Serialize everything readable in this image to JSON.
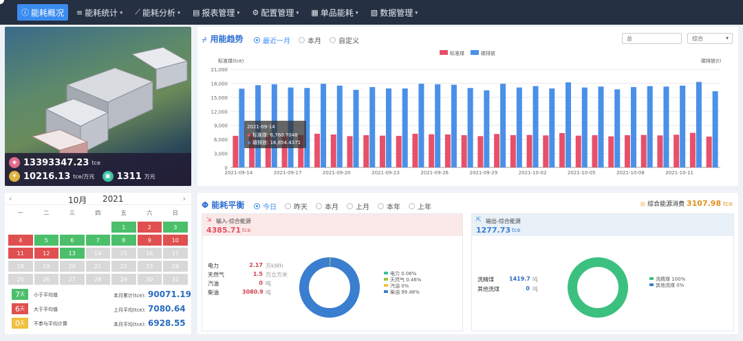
{
  "nav": {
    "items": [
      {
        "label": "能耗概况",
        "icon": "info-icon"
      },
      {
        "label": "能耗统计",
        "icon": "database-icon"
      },
      {
        "label": "能耗分析",
        "icon": "analytics-icon"
      },
      {
        "label": "报表管理",
        "icon": "report-icon"
      },
      {
        "label": "配置管理",
        "icon": "gear-icon"
      },
      {
        "label": "单品能耗",
        "icon": "document-icon"
      },
      {
        "label": "数据管理",
        "icon": "data-icon"
      }
    ]
  },
  "building": {
    "stats": [
      {
        "value": "13393347.23",
        "unit": "tce",
        "color": "#e06a8a"
      },
      {
        "value": "10216.13",
        "unit": "tce/万元",
        "color": "#e0b040"
      },
      {
        "value": "1311",
        "unit": "万元",
        "color": "#3cc0a0"
      }
    ]
  },
  "trend": {
    "title": "用能趋势",
    "ranges": [
      "最近一月",
      "本月",
      "自定义"
    ],
    "select1": "总",
    "select2": "综合",
    "tooltip": {
      "date": "2021-09-14",
      "line1": "标准煤: 6,760.7048",
      "line2": "碳排放: 16,854.4371"
    }
  },
  "chart_data": {
    "type": "bar",
    "ylabel": "标准煤(tce)",
    "y2label": "碳排放(t)",
    "ylim": [
      0,
      21000
    ],
    "yticks": [
      "0",
      "3,000",
      "6,000",
      "9,000",
      "12,000",
      "15,000",
      "18,000",
      "21,000"
    ],
    "x_tick_labels": [
      "2021-09-14",
      "2021-09-17",
      "2021-09-20",
      "2021-09-23",
      "2021-09-26",
      "2021-09-29",
      "2021-10-02",
      "2021-10-05",
      "2021-10-08",
      "2021-10-11"
    ],
    "series": [
      {
        "name": "标准煤",
        "color": "#e8506a",
        "values": [
          6760,
          7100,
          6900,
          6850,
          6900,
          7200,
          7050,
          6700,
          6900,
          6800,
          6750,
          7200,
          7100,
          7050,
          6900,
          6700,
          7150,
          6900,
          6950,
          6850,
          7350,
          6800,
          6900,
          6650,
          6900,
          6950,
          6850,
          7000,
          7400,
          6600
        ]
      },
      {
        "name": "碳排放",
        "color": "#4a90e8",
        "values": [
          16854,
          17600,
          17800,
          17100,
          17000,
          17900,
          17500,
          16600,
          17200,
          16900,
          16900,
          17900,
          17800,
          17700,
          17000,
          16500,
          17900,
          17100,
          17400,
          16900,
          18200,
          17100,
          17300,
          16700,
          17200,
          17400,
          17300,
          17500,
          18300,
          16300
        ]
      }
    ]
  },
  "calendar": {
    "month": "10月",
    "year": "2021",
    "weekdays": [
      "一",
      "二",
      "三",
      "四",
      "五",
      "六",
      "日"
    ],
    "days": [
      {
        "d": "1",
        "s": "g"
      },
      {
        "d": "2",
        "s": "r"
      },
      {
        "d": "3",
        "s": "g"
      },
      {
        "d": "4",
        "s": "r"
      },
      {
        "d": "5",
        "s": "g"
      },
      {
        "d": "6",
        "s": "g"
      },
      {
        "d": "7",
        "s": "g"
      },
      {
        "d": "8",
        "s": "g"
      },
      {
        "d": "9",
        "s": "r"
      },
      {
        "d": "10",
        "s": "r"
      },
      {
        "d": "11",
        "s": "r"
      },
      {
        "d": "12",
        "s": "r"
      },
      {
        "d": "13",
        "s": "g"
      },
      {
        "d": "14",
        "s": "n"
      },
      {
        "d": "15",
        "s": "n"
      },
      {
        "d": "16",
        "s": "n"
      },
      {
        "d": "17",
        "s": "n"
      },
      {
        "d": "18",
        "s": "n"
      },
      {
        "d": "19",
        "s": "n"
      },
      {
        "d": "20",
        "s": "n"
      },
      {
        "d": "21",
        "s": "n"
      },
      {
        "d": "22",
        "s": "n"
      },
      {
        "d": "23",
        "s": "n"
      },
      {
        "d": "24",
        "s": "n"
      },
      {
        "d": "25",
        "s": "n"
      },
      {
        "d": "26",
        "s": "n"
      },
      {
        "d": "27",
        "s": "n"
      },
      {
        "d": "28",
        "s": "n"
      },
      {
        "d": "29",
        "s": "n"
      },
      {
        "d": "30",
        "s": "n"
      },
      {
        "d": "31",
        "s": "n"
      }
    ],
    "legend": [
      {
        "count": "7",
        "unit": "天",
        "text": "小于平均值",
        "color": "#4cbf6a"
      },
      {
        "count": "6",
        "unit": "天",
        "text": "大于平均值",
        "color": "#e05050"
      },
      {
        "count": "0",
        "unit": "天",
        "text": "不参与平均计算",
        "color": "#f0c040"
      }
    ],
    "summary": [
      {
        "label": "本月累计(tce):",
        "value": "90071.19"
      },
      {
        "label": "上月平均(tce):",
        "value": "7080.64"
      },
      {
        "label": "本月平均(tce):",
        "value": "6928.55"
      }
    ]
  },
  "balance": {
    "title": "能耗平衡",
    "ranges": [
      "今日",
      "昨天",
      "本月",
      "上月",
      "本年",
      "上年"
    ],
    "total_label": "综合能源消费",
    "total_value": "3107.98",
    "total_unit": "tce",
    "input": {
      "title": "输入-综合能源",
      "value": "4385.71",
      "unit": "tce",
      "rows": [
        {
          "name": "电力",
          "value": "2.17",
          "unit": "万kWh"
        },
        {
          "name": "天然气",
          "value": "1.5",
          "unit": "万立方米"
        },
        {
          "name": "汽油",
          "value": "0",
          "unit": "吨"
        },
        {
          "name": "柴油",
          "value": "3080.9",
          "unit": "吨"
        }
      ],
      "legend": [
        {
          "name": "电力 0.06%",
          "color": "#3cc0a0",
          "pct": 0.06
        },
        {
          "name": "天然气 0.46%",
          "color": "#a0c040",
          "pct": 0.46
        },
        {
          "name": "汽油 0%",
          "color": "#f0c040",
          "pct": 0
        },
        {
          "name": "柴油 99.48%",
          "color": "#3a7ed0",
          "pct": 99.48
        }
      ]
    },
    "output": {
      "title": "输出-综合能源",
      "value": "1277.73",
      "unit": "tce",
      "rows": [
        {
          "name": "洗精煤",
          "value": "1419.7",
          "unit": "吨"
        },
        {
          "name": "其他洗煤",
          "value": "0",
          "unit": "吨"
        }
      ],
      "legend": [
        {
          "name": "洗精煤 100%",
          "color": "#3cc080",
          "pct": 100
        },
        {
          "name": "其他洗煤 0%",
          "color": "#3a7ed0",
          "pct": 0
        }
      ]
    }
  }
}
